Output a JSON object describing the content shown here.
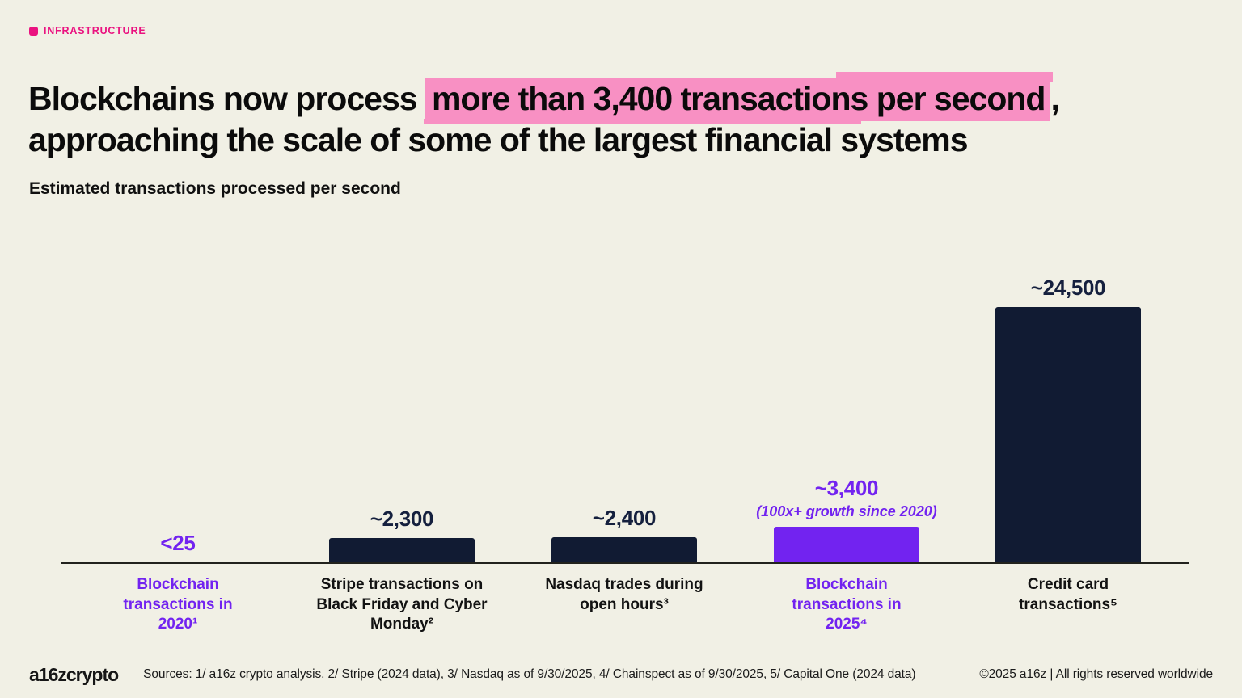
{
  "page": {
    "background": "#F1F0E5"
  },
  "tag": {
    "label": "INFRASTRUCTURE",
    "color": "#EA1380"
  },
  "title": {
    "pre": "Blockchains now process ",
    "highlight": "more than 3,400 transactions per second",
    "post": ",",
    "line2": "approaching the scale of some of the largest financial systems",
    "highlight_color": "#F890C3"
  },
  "subtitle": "Estimated transactions processed per second",
  "chart_data": {
    "type": "bar",
    "title": "Estimated transactions processed per second",
    "categories": [
      "Blockchain transactions in 2020¹",
      "Stripe transactions on Black Friday and Cyber Monday²",
      "Nasdaq trades during open hours³",
      "Blockchain transactions in 2025⁴",
      "Credit card transactions⁵"
    ],
    "values": [
      25,
      2300,
      2400,
      3400,
      24500
    ],
    "value_labels": [
      "<25",
      "~2,300",
      "~2,400",
      "~3,400",
      "~24,500"
    ],
    "annotations": [
      null,
      null,
      null,
      "(100x+ growth since 2020)",
      null
    ],
    "bar_colors": [
      "#7223F0",
      "#111B33",
      "#111B33",
      "#7223F0",
      "#111B33"
    ],
    "value_label_colors": [
      "#7223F0",
      "#15203E",
      "#15203E",
      "#7223F0",
      "#15203E"
    ],
    "category_colors": [
      "#7223F0",
      "#121212",
      "#121212",
      "#7223F0",
      "#121212"
    ],
    "xlabel": "",
    "ylabel": "",
    "ylim": [
      0,
      25000
    ],
    "grid": false,
    "legend": null,
    "orientation": "vertical"
  },
  "footer": {
    "logo": "a16zcrypto",
    "sources": "Sources: 1/ a16z crypto analysis, 2/ Stripe (2024 data), 3/ Nasdaq as of 9/30/2025, 4/ Chainspect as of 9/30/2025, 5/ Capital One (2024 data)",
    "copyright": "©2025 a16z | All rights reserved worldwide"
  }
}
